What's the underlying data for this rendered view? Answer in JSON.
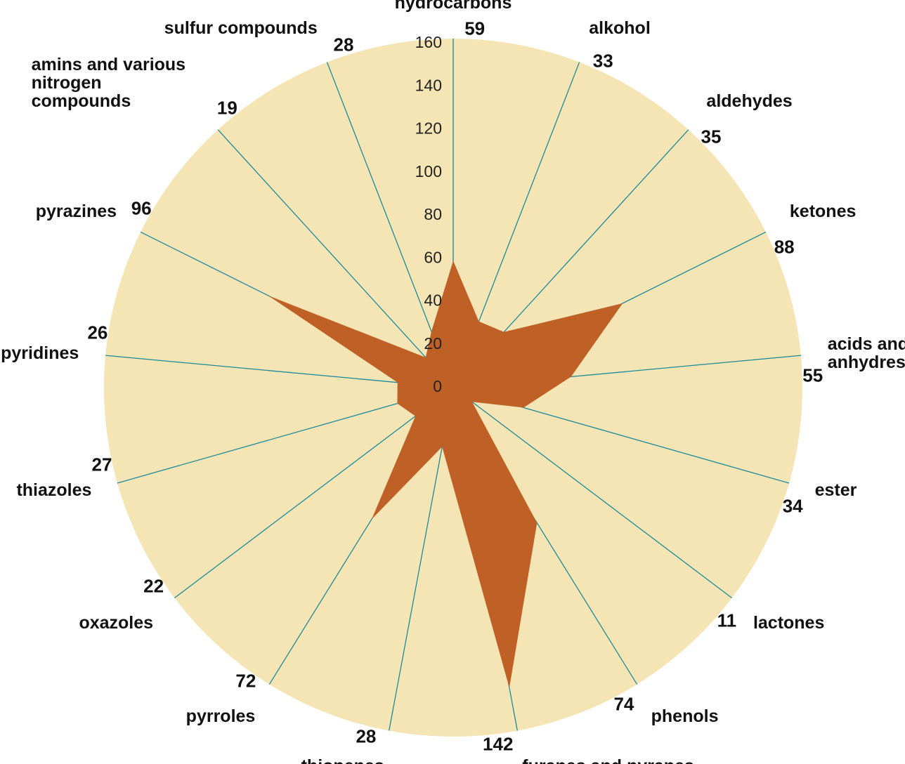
{
  "chart_data": {
    "type": "radar",
    "categories": [
      "hydrocarbons",
      "alkohol",
      "aldehydes",
      "ketones",
      "acids and anhydres",
      "ester",
      "lactones",
      "phenols",
      "furanes and pyranes",
      "thiopenes",
      "pyrroles",
      "oxazoles",
      "thiazoles",
      "pyridines",
      "pyrazines",
      "amins and various nitrogen compounds",
      "sulfur compounds"
    ],
    "values": [
      59,
      33,
      35,
      88,
      55,
      34,
      11,
      74,
      142,
      28,
      72,
      22,
      27,
      26,
      96,
      19,
      28
    ],
    "color": "#bf6126",
    "ylim": [
      0,
      160
    ],
    "yticks": [
      0,
      20,
      40,
      60,
      80,
      100,
      120,
      140,
      160
    ]
  }
}
